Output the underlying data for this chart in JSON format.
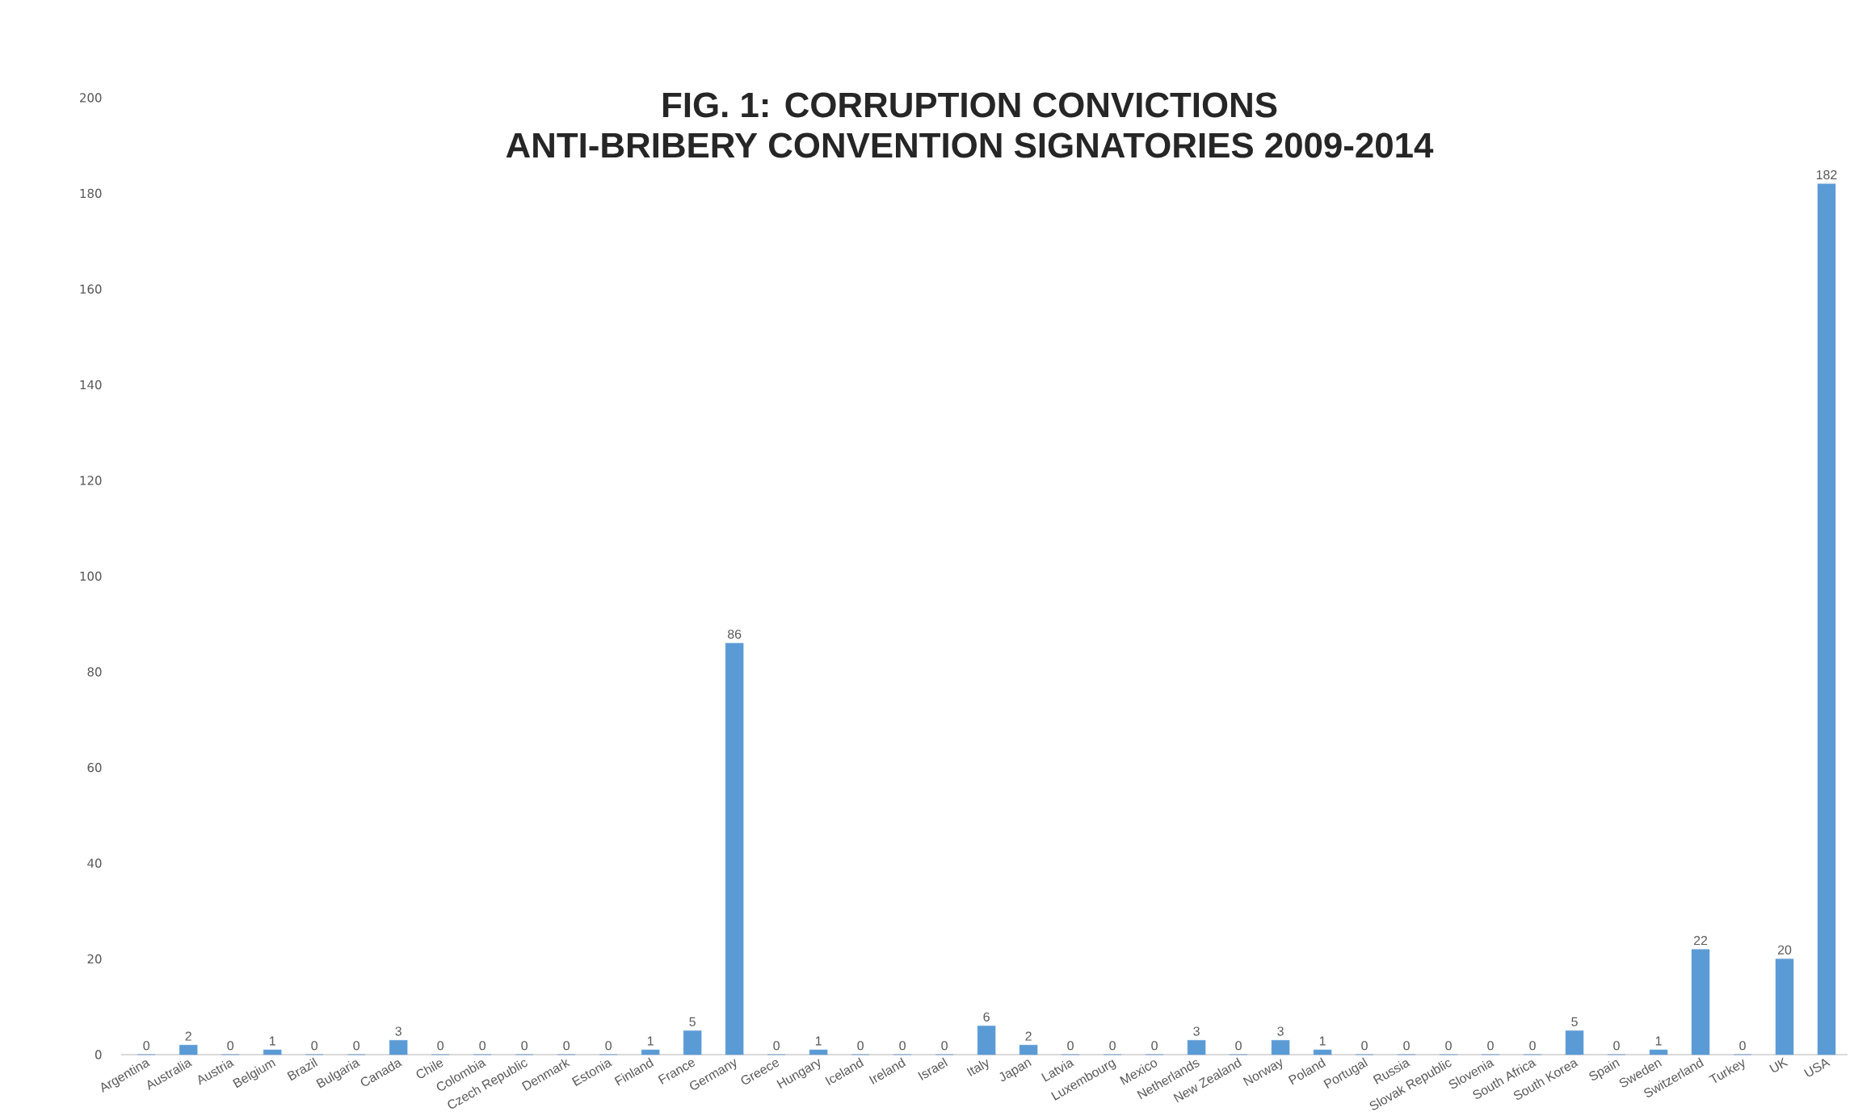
{
  "chart_data": {
    "type": "bar",
    "title": "FIG. 1: CORRUPTION CONVICTIONS",
    "subtitle": "ANTI-BRIBERY CONVENTION SIGNATORIES 2009-2014",
    "categories": [
      "Argentina",
      "Australia",
      "Austria",
      "Belgium",
      "Brazil",
      "Bulgaria",
      "Canada",
      "Chile",
      "Colombia",
      "Czech Republic",
      "Denmark",
      "Estonia",
      "Finland",
      "France",
      "Germany",
      "Greece",
      "Hungary",
      "Iceland",
      "Ireland",
      "Israel",
      "Italy",
      "Japan",
      "Latvia",
      "Luxembourg",
      "Mexico",
      "Netherlands",
      "New Zealand",
      "Norway",
      "Poland",
      "Portugal",
      "Russia",
      "Slovak Republic",
      "Slovenia",
      "South Africa",
      "South Korea",
      "Spain",
      "Sweden",
      "Switzerland",
      "Turkey",
      "UK",
      "USA"
    ],
    "values": [
      0,
      2,
      0,
      1,
      0,
      0,
      3,
      0,
      0,
      0,
      0,
      0,
      1,
      5,
      86,
      0,
      1,
      0,
      0,
      0,
      6,
      2,
      0,
      0,
      0,
      3,
      0,
      3,
      1,
      0,
      0,
      0,
      0,
      0,
      5,
      0,
      1,
      22,
      0,
      20,
      182
    ],
    "color": "#5b9bd5",
    "ylim": [
      0,
      200
    ],
    "yticks": [
      0,
      20,
      40,
      60,
      80,
      100,
      120,
      140,
      160,
      180,
      200
    ],
    "grid": false,
    "data_labels": true
  }
}
